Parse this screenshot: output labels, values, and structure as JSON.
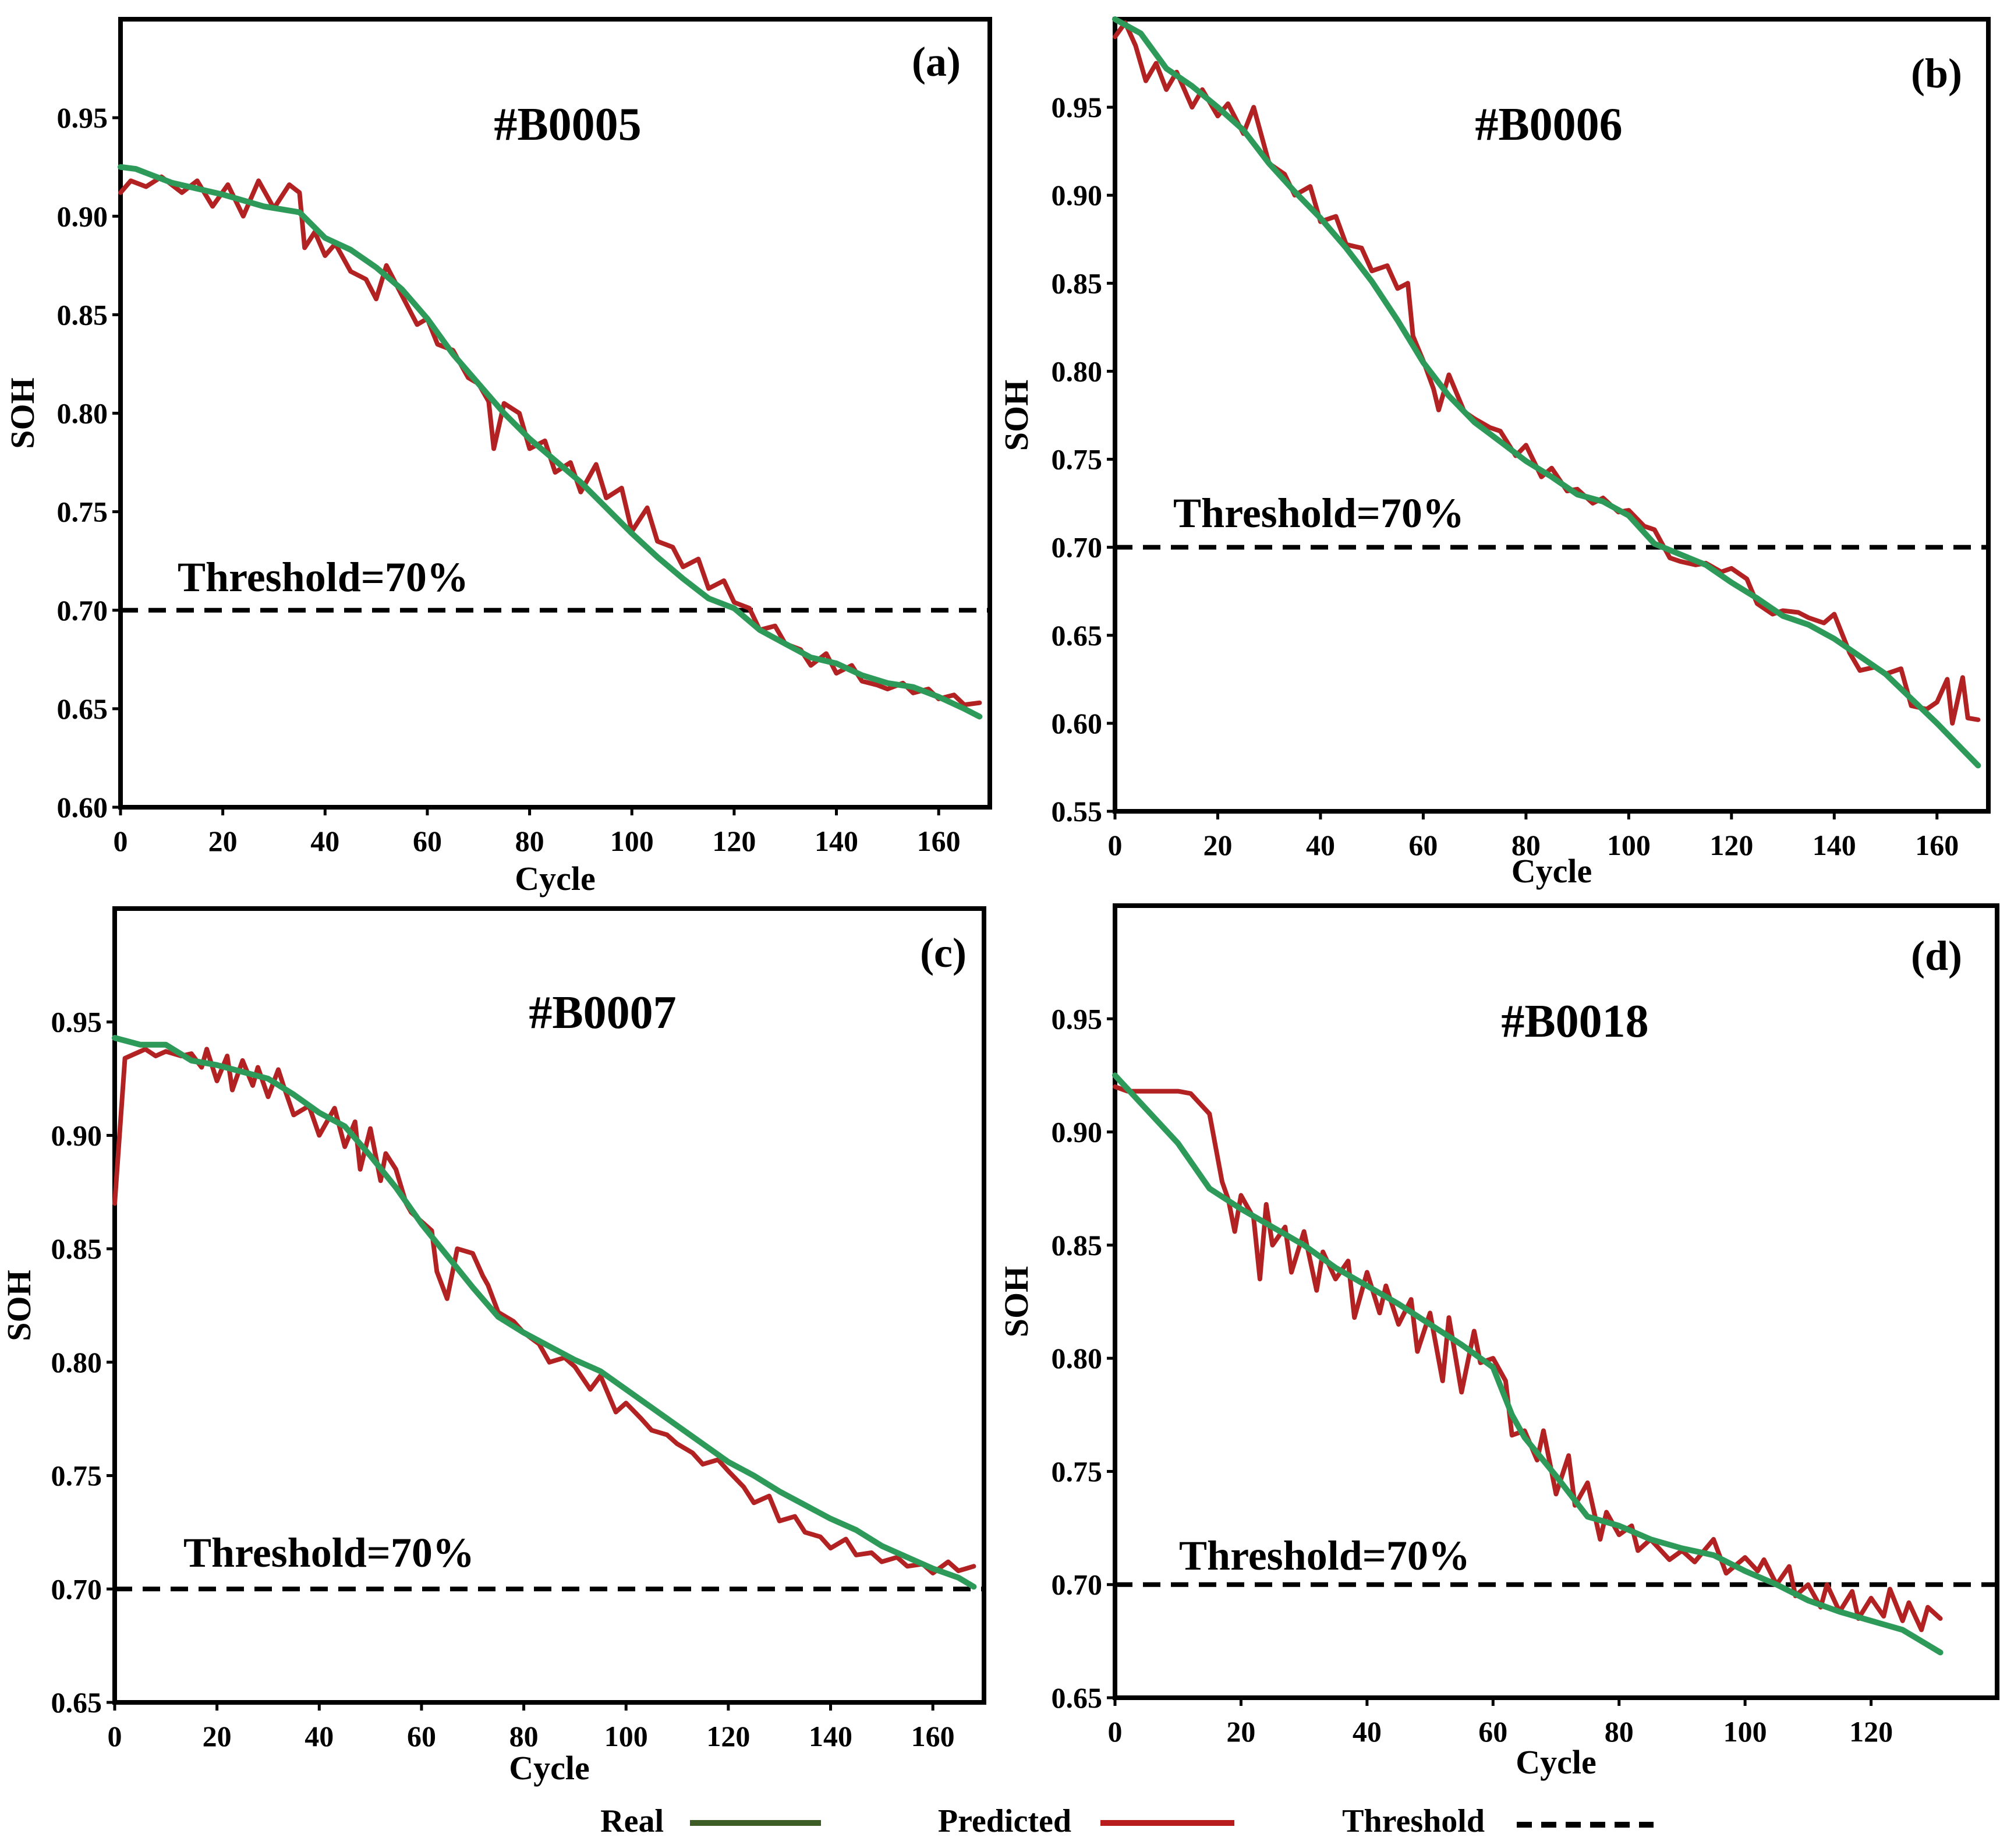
{
  "chart_data": [
    {
      "type": "line",
      "panel": "(a)",
      "title": "#B0005",
      "xlabel": "Cycle",
      "ylabel": "SOH",
      "xlim": [
        0,
        170
      ],
      "ylim": [
        0.6,
        1.0
      ],
      "xticks": [
        0,
        20,
        40,
        60,
        80,
        100,
        120,
        140,
        160
      ],
      "yticks": [
        0.6,
        0.65,
        0.7,
        0.75,
        0.8,
        0.85,
        0.9,
        0.95
      ],
      "ytick_labels": [
        "0.60",
        "0.65",
        "0.70",
        "0.75",
        "0.80",
        "0.85",
        "0.90",
        "0.95"
      ],
      "threshold": 0.7,
      "threshold_label": "Threshold=70%",
      "series": [
        {
          "name": "Real",
          "x": [
            0,
            3,
            10,
            20,
            28,
            35,
            40,
            45,
            50,
            55,
            60,
            65,
            70,
            75,
            80,
            85,
            90,
            95,
            100,
            105,
            110,
            115,
            120,
            125,
            130,
            135,
            140,
            145,
            150,
            155,
            160,
            165,
            168
          ],
          "values": [
            0.925,
            0.924,
            0.917,
            0.911,
            0.905,
            0.902,
            0.889,
            0.883,
            0.874,
            0.863,
            0.848,
            0.83,
            0.815,
            0.8,
            0.787,
            0.776,
            0.765,
            0.752,
            0.739,
            0.727,
            0.716,
            0.706,
            0.701,
            0.69,
            0.683,
            0.676,
            0.673,
            0.667,
            0.663,
            0.661,
            0.656,
            0.65,
            0.646
          ]
        },
        {
          "name": "Predicted",
          "x": [
            0,
            2,
            5,
            8,
            12,
            15,
            18,
            21,
            24,
            27,
            30,
            33,
            35,
            36,
            38,
            40,
            42,
            45,
            48,
            50,
            52,
            55,
            58,
            60,
            62,
            65,
            68,
            70,
            72,
            73,
            75,
            78,
            80,
            83,
            85,
            88,
            90,
            93,
            95,
            98,
            100,
            103,
            105,
            108,
            110,
            113,
            115,
            118,
            120,
            123,
            125,
            128,
            130,
            133,
            135,
            138,
            140,
            143,
            145,
            148,
            150,
            153,
            155,
            158,
            160,
            163,
            165,
            168
          ],
          "values": [
            0.912,
            0.918,
            0.915,
            0.92,
            0.912,
            0.918,
            0.905,
            0.916,
            0.9,
            0.918,
            0.904,
            0.916,
            0.912,
            0.884,
            0.892,
            0.88,
            0.886,
            0.872,
            0.868,
            0.858,
            0.875,
            0.86,
            0.845,
            0.848,
            0.835,
            0.832,
            0.818,
            0.815,
            0.806,
            0.782,
            0.805,
            0.8,
            0.782,
            0.786,
            0.77,
            0.775,
            0.76,
            0.774,
            0.757,
            0.762,
            0.74,
            0.752,
            0.735,
            0.732,
            0.722,
            0.726,
            0.711,
            0.715,
            0.704,
            0.701,
            0.69,
            0.692,
            0.683,
            0.68,
            0.672,
            0.678,
            0.668,
            0.672,
            0.664,
            0.662,
            0.66,
            0.663,
            0.658,
            0.66,
            0.655,
            0.657,
            0.652,
            0.653
          ]
        }
      ]
    },
    {
      "type": "line",
      "panel": "(b)",
      "title": "#B0006",
      "xlabel": "Cycle",
      "ylabel": "SOH",
      "xlim": [
        0,
        170
      ],
      "ylim": [
        0.55,
        1.0
      ],
      "xticks": [
        0,
        20,
        40,
        60,
        80,
        100,
        120,
        140,
        160
      ],
      "yticks": [
        0.55,
        0.6,
        0.65,
        0.7,
        0.75,
        0.8,
        0.85,
        0.9,
        0.95
      ],
      "ytick_labels": [
        "0.55",
        "0.60",
        "0.65",
        "0.70",
        "0.75",
        "0.80",
        "0.85",
        "0.90",
        "0.95"
      ],
      "threshold": 0.7,
      "threshold_label": "Threshold=70%",
      "series": [
        {
          "name": "Real",
          "x": [
            0,
            5,
            10,
            15,
            20,
            25,
            30,
            35,
            40,
            45,
            50,
            55,
            60,
            65,
            70,
            75,
            80,
            85,
            90,
            95,
            100,
            105,
            110,
            115,
            120,
            125,
            130,
            135,
            140,
            145,
            150,
            155,
            160,
            165,
            168
          ],
          "values": [
            1.0,
            0.992,
            0.972,
            0.962,
            0.95,
            0.937,
            0.918,
            0.902,
            0.887,
            0.87,
            0.851,
            0.829,
            0.805,
            0.786,
            0.771,
            0.76,
            0.749,
            0.74,
            0.73,
            0.726,
            0.718,
            0.702,
            0.696,
            0.69,
            0.68,
            0.671,
            0.661,
            0.656,
            0.648,
            0.638,
            0.628,
            0.614,
            0.6,
            0.585,
            0.576
          ]
        },
        {
          "name": "Predicted",
          "x": [
            0,
            2,
            4,
            6,
            8,
            10,
            12,
            15,
            17,
            20,
            22,
            25,
            27,
            30,
            33,
            35,
            38,
            40,
            43,
            45,
            48,
            50,
            53,
            55,
            57,
            58,
            60,
            62,
            63,
            65,
            68,
            70,
            73,
            75,
            78,
            80,
            83,
            85,
            88,
            90,
            93,
            95,
            98,
            100,
            103,
            105,
            108,
            110,
            113,
            115,
            118,
            120,
            123,
            125,
            128,
            130,
            133,
            135,
            138,
            140,
            143,
            145,
            148,
            150,
            153,
            155,
            158,
            160,
            162,
            163,
            165,
            166,
            168
          ],
          "values": [
            0.99,
            0.998,
            0.985,
            0.965,
            0.975,
            0.96,
            0.97,
            0.95,
            0.96,
            0.945,
            0.952,
            0.935,
            0.95,
            0.918,
            0.912,
            0.9,
            0.905,
            0.885,
            0.888,
            0.872,
            0.87,
            0.857,
            0.86,
            0.847,
            0.85,
            0.82,
            0.806,
            0.79,
            0.778,
            0.798,
            0.777,
            0.773,
            0.768,
            0.766,
            0.752,
            0.758,
            0.74,
            0.745,
            0.732,
            0.733,
            0.725,
            0.728,
            0.72,
            0.721,
            0.712,
            0.71,
            0.694,
            0.692,
            0.69,
            0.691,
            0.686,
            0.688,
            0.682,
            0.668,
            0.662,
            0.664,
            0.663,
            0.66,
            0.657,
            0.662,
            0.64,
            0.63,
            0.632,
            0.628,
            0.631,
            0.61,
            0.608,
            0.612,
            0.625,
            0.6,
            0.626,
            0.603,
            0.602
          ]
        }
      ]
    },
    {
      "type": "line",
      "panel": "(c)",
      "title": "#B0007",
      "xlabel": "Cycle",
      "ylabel": "SOH",
      "xlim": [
        0,
        170
      ],
      "ylim": [
        0.65,
        1.0
      ],
      "xticks": [
        0,
        20,
        40,
        60,
        80,
        100,
        120,
        140,
        160
      ],
      "yticks": [
        0.65,
        0.7,
        0.75,
        0.8,
        0.85,
        0.9,
        0.95
      ],
      "ytick_labels": [
        "0.65",
        "0.70",
        "0.75",
        "0.80",
        "0.85",
        "0.90",
        "0.95"
      ],
      "threshold": 0.7,
      "threshold_label": "Threshold=70%",
      "series": [
        {
          "name": "Real",
          "x": [
            0,
            5,
            10,
            15,
            20,
            25,
            30,
            35,
            40,
            45,
            50,
            55,
            60,
            65,
            70,
            75,
            80,
            85,
            90,
            95,
            100,
            105,
            110,
            115,
            120,
            125,
            130,
            135,
            140,
            145,
            150,
            155,
            160,
            165,
            168
          ],
          "values": [
            0.943,
            0.94,
            0.94,
            0.933,
            0.931,
            0.928,
            0.925,
            0.918,
            0.91,
            0.904,
            0.891,
            0.877,
            0.861,
            0.847,
            0.833,
            0.82,
            0.813,
            0.807,
            0.801,
            0.796,
            0.788,
            0.78,
            0.772,
            0.764,
            0.756,
            0.75,
            0.743,
            0.737,
            0.731,
            0.726,
            0.719,
            0.714,
            0.709,
            0.705,
            0.701
          ]
        },
        {
          "name": "Predicted",
          "x": [
            0,
            2,
            4,
            6,
            8,
            10,
            13,
            15,
            17,
            18,
            20,
            22,
            23,
            25,
            27,
            28,
            30,
            32,
            33,
            35,
            38,
            40,
            43,
            45,
            47,
            48,
            50,
            52,
            53,
            55,
            57,
            58,
            60,
            62,
            63,
            65,
            67,
            70,
            72,
            73,
            75,
            78,
            80,
            83,
            85,
            88,
            90,
            93,
            95,
            98,
            100,
            103,
            105,
            108,
            110,
            113,
            115,
            118,
            120,
            123,
            125,
            128,
            130,
            133,
            135,
            138,
            140,
            143,
            145,
            148,
            150,
            153,
            155,
            158,
            160,
            163,
            165,
            168
          ],
          "values": [
            0.87,
            0.934,
            0.936,
            0.938,
            0.935,
            0.937,
            0.935,
            0.936,
            0.93,
            0.938,
            0.924,
            0.935,
            0.92,
            0.933,
            0.922,
            0.93,
            0.917,
            0.929,
            0.922,
            0.909,
            0.913,
            0.9,
            0.912,
            0.895,
            0.906,
            0.885,
            0.903,
            0.88,
            0.892,
            0.885,
            0.87,
            0.866,
            0.862,
            0.858,
            0.84,
            0.828,
            0.85,
            0.848,
            0.838,
            0.834,
            0.822,
            0.818,
            0.813,
            0.808,
            0.8,
            0.802,
            0.798,
            0.788,
            0.794,
            0.778,
            0.782,
            0.775,
            0.77,
            0.768,
            0.764,
            0.76,
            0.755,
            0.757,
            0.752,
            0.745,
            0.738,
            0.741,
            0.73,
            0.732,
            0.725,
            0.723,
            0.718,
            0.722,
            0.715,
            0.716,
            0.712,
            0.714,
            0.71,
            0.711,
            0.707,
            0.712,
            0.708,
            0.71
          ]
        }
      ]
    },
    {
      "type": "line",
      "panel": "(d)",
      "title": "#B0018",
      "xlabel": "Cycle",
      "ylabel": "SOH",
      "xlim": [
        0,
        140
      ],
      "ylim": [
        0.65,
        1.0
      ],
      "xticks": [
        0,
        20,
        40,
        60,
        80,
        100,
        120
      ],
      "yticks": [
        0.65,
        0.7,
        0.75,
        0.8,
        0.85,
        0.9,
        0.95
      ],
      "ytick_labels": [
        "0.65",
        "0.70",
        "0.75",
        "0.80",
        "0.85",
        "0.90",
        "0.95"
      ],
      "threshold": 0.7,
      "threshold_label": "Threshold=70%",
      "series": [
        {
          "name": "Real",
          "x": [
            0,
            5,
            10,
            15,
            20,
            25,
            30,
            35,
            40,
            45,
            50,
            55,
            60,
            63,
            65,
            70,
            75,
            80,
            85,
            90,
            95,
            100,
            105,
            110,
            115,
            120,
            125,
            131
          ],
          "values": [
            0.925,
            0.91,
            0.895,
            0.875,
            0.866,
            0.858,
            0.85,
            0.84,
            0.832,
            0.824,
            0.815,
            0.806,
            0.796,
            0.775,
            0.765,
            0.748,
            0.73,
            0.726,
            0.72,
            0.716,
            0.713,
            0.706,
            0.7,
            0.693,
            0.688,
            0.684,
            0.68,
            0.67
          ]
        },
        {
          "name": "Predicted",
          "x": [
            0,
            2,
            5,
            10,
            12,
            15,
            17,
            18,
            19,
            20,
            22,
            23,
            24,
            25,
            27,
            28,
            30,
            32,
            33,
            35,
            37,
            38,
            40,
            42,
            43,
            45,
            47,
            48,
            50,
            52,
            53,
            55,
            57,
            58,
            60,
            62,
            63,
            65,
            67,
            68,
            70,
            72,
            73,
            75,
            77,
            78,
            80,
            82,
            83,
            85,
            88,
            90,
            92,
            95,
            97,
            100,
            102,
            103,
            105,
            107,
            108,
            110,
            112,
            113,
            115,
            117,
            118,
            120,
            122,
            123,
            125,
            126,
            128,
            129,
            131
          ],
          "values": [
            0.92,
            0.918,
            0.918,
            0.918,
            0.917,
            0.908,
            0.878,
            0.87,
            0.856,
            0.872,
            0.862,
            0.835,
            0.868,
            0.85,
            0.858,
            0.838,
            0.856,
            0.83,
            0.847,
            0.835,
            0.843,
            0.818,
            0.838,
            0.82,
            0.832,
            0.815,
            0.826,
            0.803,
            0.82,
            0.79,
            0.818,
            0.785,
            0.812,
            0.798,
            0.8,
            0.79,
            0.766,
            0.768,
            0.755,
            0.768,
            0.74,
            0.757,
            0.735,
            0.745,
            0.72,
            0.732,
            0.722,
            0.726,
            0.715,
            0.72,
            0.711,
            0.715,
            0.71,
            0.72,
            0.705,
            0.712,
            0.706,
            0.711,
            0.7,
            0.708,
            0.695,
            0.7,
            0.69,
            0.7,
            0.688,
            0.697,
            0.685,
            0.694,
            0.686,
            0.698,
            0.684,
            0.692,
            0.68,
            0.69,
            0.685
          ]
        }
      ]
    }
  ],
  "legend": {
    "items": [
      {
        "label": "Real",
        "color": "#3d5c26",
        "style": "solid"
      },
      {
        "label": "Predicted",
        "color": "#b81c1c",
        "style": "solid"
      },
      {
        "label": "Threshold",
        "color": "#000000",
        "style": "dashed"
      }
    ]
  },
  "colors": {
    "real": "#2e9a5a",
    "predicted": "#b22222",
    "threshold": "#000000"
  }
}
